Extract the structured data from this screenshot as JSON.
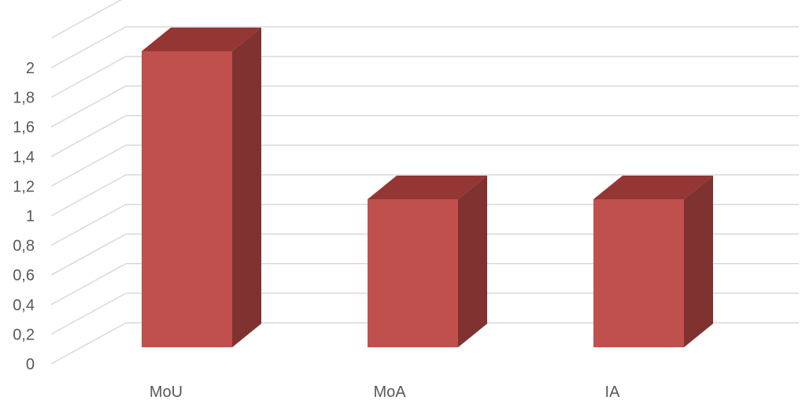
{
  "chart_data": {
    "type": "bar",
    "style": "3d-column",
    "categories": [
      "MoU",
      "MoA",
      "IA"
    ],
    "values": [
      2,
      1,
      1
    ],
    "ylim": [
      0,
      2.2
    ],
    "yticks": [
      "0",
      "0,2",
      "0,4",
      "0,6",
      "0,8",
      "1",
      "1,2",
      "1,4",
      "1,6",
      "1,8",
      "2"
    ],
    "grid": true,
    "legend": "none",
    "colors": {
      "front": "#c0504d",
      "top": "#943634",
      "side": "#7f3230",
      "grid": "#d9d9d9",
      "label": "#595959"
    }
  }
}
